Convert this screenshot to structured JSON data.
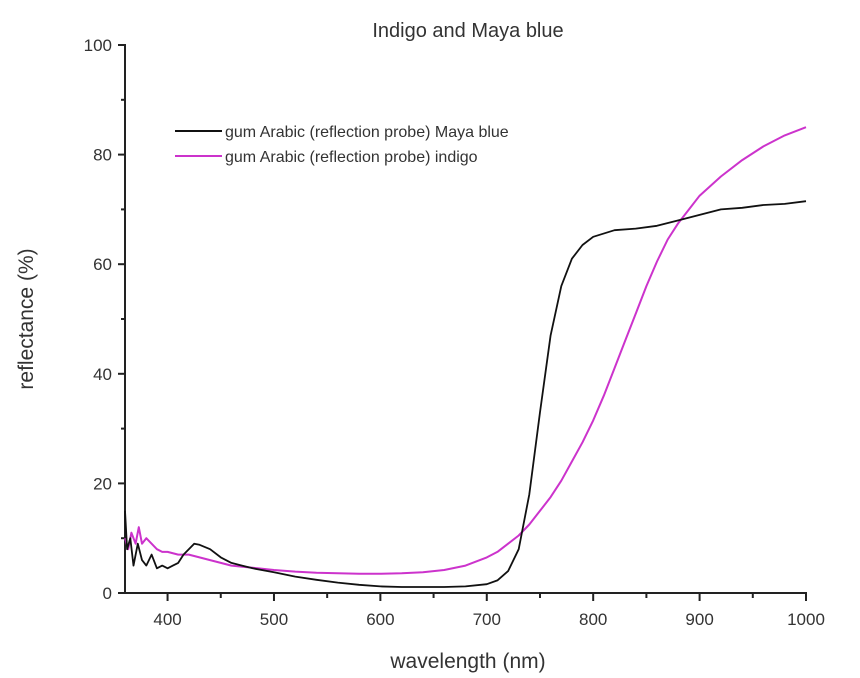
{
  "chart_data": {
    "type": "line",
    "title": "Indigo and Maya blue",
    "xlabel": "wavelength (nm)",
    "ylabel": "reflectance (%)",
    "xlim": [
      360,
      1000
    ],
    "ylim": [
      0,
      100
    ],
    "x_ticks": [
      400,
      500,
      600,
      700,
      800,
      900,
      1000
    ],
    "y_ticks": [
      0,
      20,
      40,
      60,
      80,
      100
    ],
    "grid": false,
    "legend_position": "upper-left (inside plot)",
    "series": [
      {
        "name": "gum Arabic (reflection probe) Maya blue",
        "color": "#111111",
        "x": [
          360,
          362,
          365,
          368,
          372,
          376,
          380,
          385,
          390,
          395,
          400,
          405,
          410,
          415,
          420,
          425,
          430,
          440,
          450,
          460,
          470,
          480,
          500,
          520,
          540,
          560,
          580,
          600,
          620,
          640,
          660,
          680,
          700,
          710,
          720,
          730,
          740,
          750,
          760,
          770,
          780,
          790,
          800,
          820,
          840,
          860,
          880,
          900,
          920,
          940,
          960,
          980,
          1000
        ],
        "y": [
          15,
          8,
          10,
          5,
          9,
          6,
          5,
          7,
          4.5,
          5,
          4.5,
          5,
          5.5,
          7,
          8,
          9,
          8.8,
          8,
          6.5,
          5.5,
          5,
          4.5,
          3.8,
          3,
          2.4,
          1.9,
          1.5,
          1.2,
          1.1,
          1.1,
          1.1,
          1.2,
          1.6,
          2.3,
          4,
          8,
          18,
          33,
          47,
          56,
          61,
          63.5,
          65,
          66.2,
          66.5,
          67,
          68,
          69,
          70,
          70.3,
          70.8,
          71,
          71.5
        ]
      },
      {
        "name": "gum Arabic (reflection probe) indigo",
        "color": "#cc33cc",
        "x": [
          360,
          363,
          366,
          370,
          373,
          376,
          380,
          385,
          390,
          395,
          400,
          410,
          420,
          430,
          440,
          450,
          460,
          480,
          500,
          520,
          540,
          560,
          580,
          600,
          620,
          640,
          660,
          680,
          700,
          710,
          720,
          730,
          740,
          750,
          760,
          770,
          780,
          790,
          800,
          810,
          820,
          830,
          840,
          850,
          860,
          870,
          880,
          890,
          900,
          920,
          940,
          960,
          980,
          1000
        ],
        "y": [
          10,
          8,
          11,
          9,
          12,
          9,
          10,
          9,
          8,
          7.5,
          7.5,
          7,
          7,
          6.5,
          6,
          5.5,
          5,
          4.6,
          4.2,
          3.9,
          3.7,
          3.6,
          3.5,
          3.5,
          3.6,
          3.8,
          4.2,
          5,
          6.5,
          7.5,
          9,
          10.5,
          12.5,
          15,
          17.5,
          20.5,
          24,
          27.5,
          31.5,
          36,
          41,
          46,
          51,
          56,
          60.5,
          64.5,
          67.5,
          70,
          72.5,
          76,
          79,
          81.5,
          83.5,
          85
        ]
      }
    ]
  }
}
